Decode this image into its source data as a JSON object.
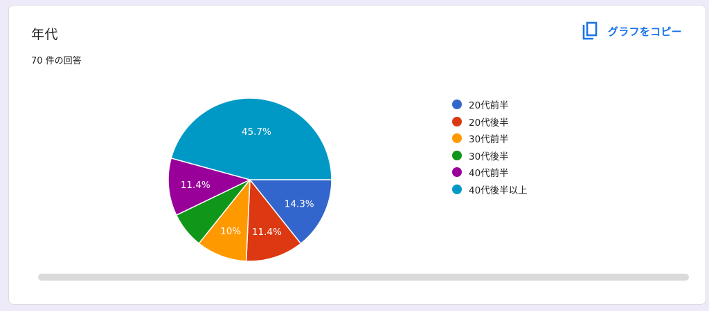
{
  "card": {
    "title": "年代",
    "response_count": "70 件の回答",
    "copy_label": "グラフをコピー"
  },
  "icons": {
    "copy": "copy-icon"
  },
  "colors": {
    "accent": "#1a73e8"
  },
  "chart_data": {
    "type": "pie",
    "categories": [
      "20代前半",
      "20代後半",
      "30代前半",
      "30代後半",
      "40代前半",
      "40代後半以上"
    ],
    "values": [
      14.3,
      11.4,
      10,
      7.1,
      11.4,
      45.7
    ],
    "labels": [
      "14.3%",
      "11.4%",
      "10%",
      "",
      "11.4%",
      "45.7%"
    ],
    "colors": [
      "#3366cc",
      "#dc3912",
      "#ff9900",
      "#109618",
      "#990099",
      "#0099c6"
    ],
    "legend_position": "right"
  }
}
